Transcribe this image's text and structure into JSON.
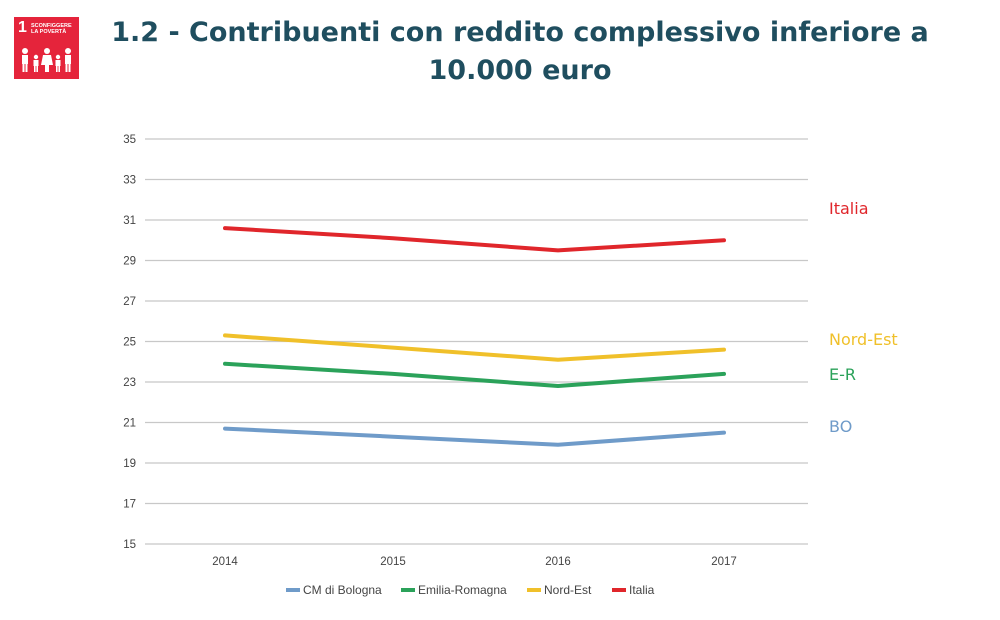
{
  "badge": {
    "number": "1",
    "goal_text": "SCONFIGGERE\nLA POVERTÀ",
    "icon": "family-icon",
    "color": "#e5243b"
  },
  "title": "1.2 - Contribuenti con reddito complessivo inferiore a 10.000 euro",
  "chart_data": {
    "type": "line",
    "x": [
      "2014",
      "2015",
      "2016",
      "2017"
    ],
    "ylim": [
      15,
      35
    ],
    "yticks": [
      15,
      17,
      19,
      21,
      23,
      25,
      27,
      29,
      31,
      33,
      35
    ],
    "grid": true,
    "legend_position": "bottom",
    "series": [
      {
        "name": "CM di Bologna",
        "end_label": "BO",
        "color": "#6f9bc9",
        "values": [
          20.7,
          20.3,
          19.9,
          20.5
        ]
      },
      {
        "name": "Emilia-Romagna",
        "end_label": "E-R",
        "color": "#2ba25a",
        "values": [
          23.9,
          23.4,
          22.8,
          23.4
        ]
      },
      {
        "name": "Nord-Est",
        "end_label": "Nord-Est",
        "color": "#f0c02a",
        "values": [
          25.3,
          24.7,
          24.1,
          24.6
        ]
      },
      {
        "name": "Italia",
        "end_label": "Italia",
        "color": "#e0262b",
        "values": [
          30.6,
          30.1,
          29.5,
          30.0
        ]
      }
    ]
  }
}
